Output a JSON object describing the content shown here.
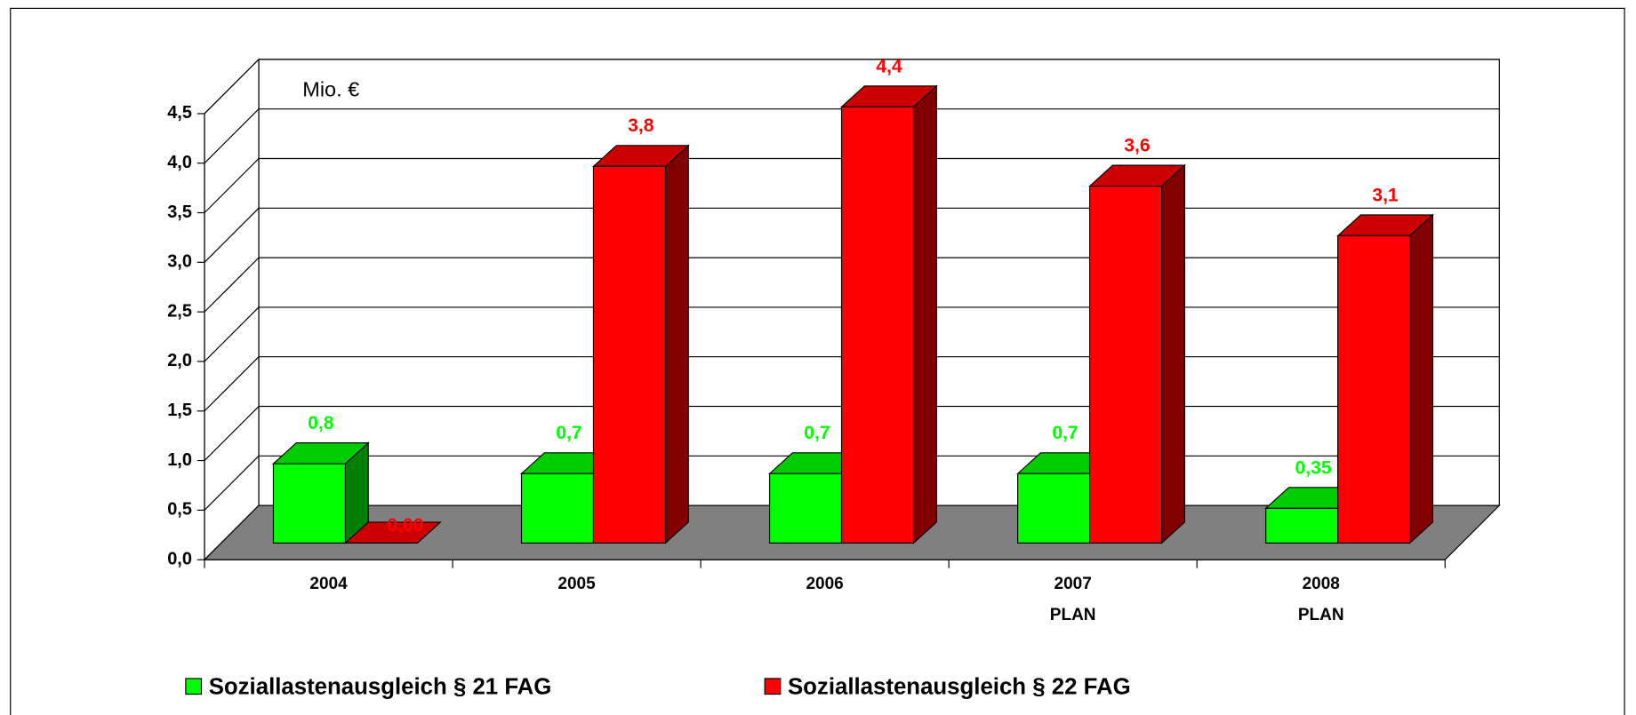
{
  "chart_data": {
    "type": "bar3d",
    "annotation": "Mio. €",
    "categories": [
      "2004",
      "2005",
      "2006",
      "2007\nPLAN",
      "2008\nPLAN"
    ],
    "series": [
      {
        "name": "Soziallastenausgleich § 21 FAG",
        "color": "#00ff00",
        "values": [
          0.8,
          0.7,
          0.7,
          0.7,
          0.35
        ],
        "value_labels": [
          "0,8",
          "0,7",
          "0,7",
          "0,7",
          "0,35"
        ]
      },
      {
        "name": "Soziallastenausgleich § 22 FAG",
        "color": "#ff0000",
        "values": [
          0,
          3.8,
          4.4,
          3.6,
          3.1
        ],
        "value_labels": [
          "0,00",
          "3,8",
          "4,4",
          "3,6",
          "3,1"
        ]
      }
    ],
    "ylim": [
      0,
      4.5
    ],
    "yticks": [
      {
        "value": 0,
        "label": "0,0"
      },
      {
        "value": 0.5,
        "label": "0,5"
      },
      {
        "value": 1,
        "label": "1,0"
      },
      {
        "value": 1.5,
        "label": "1,5"
      },
      {
        "value": 2,
        "label": "2,0"
      },
      {
        "value": 2.5,
        "label": "2,5"
      },
      {
        "value": 3,
        "label": "3,0"
      },
      {
        "value": 3.5,
        "label": "3,5"
      },
      {
        "value": 4,
        "label": "4,0"
      },
      {
        "value": 4.5,
        "label": "4,5"
      }
    ],
    "grid": true,
    "legend": "bottom"
  }
}
